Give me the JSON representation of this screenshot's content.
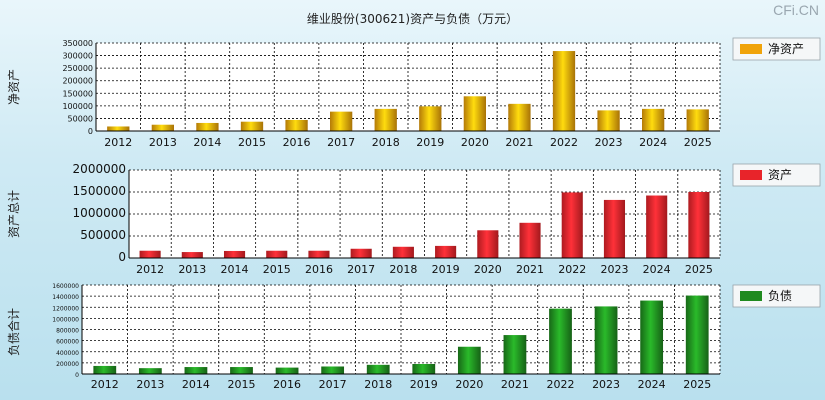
{
  "title": "维业股份(300621)资产与负债（万元）",
  "watermark": "CFi.CN",
  "colors": {
    "net_assets": "#f0a30a",
    "total_assets": "#e8242a",
    "total_liabilities": "#1f8a1f"
  },
  "chart_data": [
    {
      "type": "bar",
      "title": "净资产",
      "ylabel": "净资产",
      "legend": "净资产",
      "categories": [
        "2012",
        "2013",
        "2014",
        "2015",
        "2016",
        "2017",
        "2018",
        "2019",
        "2020",
        "2021",
        "2022",
        "2023",
        "2024",
        "2025"
      ],
      "values": [
        18000,
        25000,
        32000,
        37000,
        44000,
        77000,
        88000,
        98000,
        138000,
        108000,
        318000,
        82000,
        88000,
        86000
      ],
      "ylim": [
        0,
        350000
      ],
      "yticks": [
        0,
        50000,
        100000,
        150000,
        200000,
        250000,
        300000,
        350000
      ],
      "grid": true,
      "legend_position": "right"
    },
    {
      "type": "bar",
      "title": "资产",
      "ylabel": "资产总计",
      "legend": "资产",
      "categories": [
        "2012",
        "2013",
        "2014",
        "2015",
        "2016",
        "2017",
        "2018",
        "2019",
        "2020",
        "2021",
        "2022",
        "2023",
        "2024",
        "2025"
      ],
      "values": [
        165000,
        135000,
        160000,
        165000,
        165000,
        210000,
        255000,
        275000,
        630000,
        800000,
        1490000,
        1320000,
        1420000,
        1500000
      ],
      "ylim": [
        0,
        2000000
      ],
      "yticks": [
        0,
        500000,
        1000000,
        1500000,
        2000000
      ],
      "grid": true,
      "legend_position": "right"
    },
    {
      "type": "bar",
      "title": "负债",
      "ylabel": "负债合计",
      "legend": "负债",
      "categories": [
        "2012",
        "2013",
        "2014",
        "2015",
        "2016",
        "2017",
        "2018",
        "2019",
        "2020",
        "2021",
        "2022",
        "2023",
        "2024",
        "2025"
      ],
      "values": [
        145000,
        105000,
        125000,
        125000,
        115000,
        135000,
        165000,
        180000,
        490000,
        700000,
        1175000,
        1215000,
        1320000,
        1410000
      ],
      "ylim": [
        0,
        1600000
      ],
      "yticks": [
        0,
        200000,
        400000,
        600000,
        800000,
        1000000,
        1200000,
        1400000,
        1600000
      ],
      "grid": true,
      "legend_position": "right"
    }
  ]
}
